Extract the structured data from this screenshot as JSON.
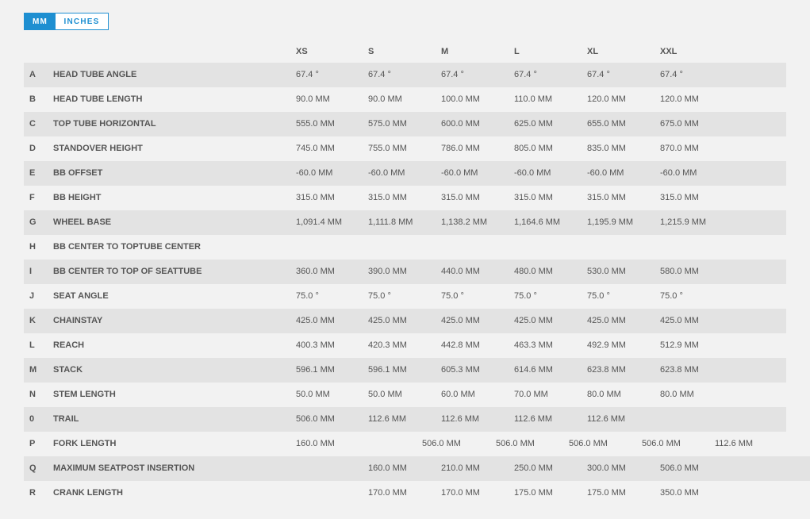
{
  "unit_toggle": {
    "mm_label": "MM",
    "inches_label": "INCHES",
    "active": "MM"
  },
  "sizes": [
    "XS",
    "S",
    "M",
    "L",
    "XL",
    "XXL"
  ],
  "rows": [
    {
      "letter": "A",
      "label": "HEAD TUBE ANGLE",
      "values": [
        "67.4 °",
        "67.4 °",
        "67.4 °",
        "67.4 °",
        "67.4 °",
        "67.4 °"
      ]
    },
    {
      "letter": "B",
      "label": "HEAD TUBE LENGTH",
      "values": [
        "90.0 MM",
        "90.0 MM",
        "100.0 MM",
        "110.0 MM",
        "120.0 MM",
        "120.0 MM"
      ]
    },
    {
      "letter": "C",
      "label": "TOP TUBE HORIZONTAL",
      "values": [
        "555.0 MM",
        "575.0 MM",
        "600.0 MM",
        "625.0 MM",
        "655.0 MM",
        "675.0 MM"
      ]
    },
    {
      "letter": "D",
      "label": "STANDOVER HEIGHT",
      "values": [
        "745.0 MM",
        "755.0 MM",
        "786.0 MM",
        "805.0 MM",
        "835.0 MM",
        "870.0 MM"
      ]
    },
    {
      "letter": "E",
      "label": "BB OFFSET",
      "values": [
        "-60.0 MM",
        "-60.0 MM",
        "-60.0 MM",
        "-60.0 MM",
        "-60.0 MM",
        "-60.0 MM"
      ]
    },
    {
      "letter": "F",
      "label": "BB HEIGHT",
      "values": [
        "315.0 MM",
        "315.0 MM",
        "315.0 MM",
        "315.0 MM",
        "315.0 MM",
        "315.0 MM"
      ]
    },
    {
      "letter": "G",
      "label": "WHEEL BASE",
      "values": [
        "1,091.4 MM",
        "1,111.8 MM",
        "1,138.2 MM",
        "1,164.6 MM",
        "1,195.9 MM",
        "1,215.9 MM"
      ]
    },
    {
      "letter": "H",
      "label": "BB CENTER TO TOPTUBE CENTER",
      "values": [
        "",
        "",
        "",
        "",
        "",
        ""
      ]
    },
    {
      "letter": "I",
      "label": "BB CENTER TO TOP OF SEATTUBE",
      "values": [
        "360.0 MM",
        "390.0 MM",
        "440.0 MM",
        "480.0 MM",
        "530.0 MM",
        "580.0 MM"
      ]
    },
    {
      "letter": "J",
      "label": "SEAT ANGLE",
      "values": [
        "75.0 °",
        "75.0 °",
        "75.0 °",
        "75.0 °",
        "75.0 °",
        "75.0 °"
      ]
    },
    {
      "letter": "K",
      "label": "CHAINSTAY",
      "values": [
        "425.0 MM",
        "425.0 MM",
        "425.0 MM",
        "425.0 MM",
        "425.0 MM",
        "425.0 MM"
      ]
    },
    {
      "letter": "L",
      "label": "REACH",
      "values": [
        "400.3 MM",
        "420.3 MM",
        "442.8 MM",
        "463.3 MM",
        "492.9 MM",
        "512.9 MM"
      ]
    },
    {
      "letter": "M",
      "label": "STACK",
      "values": [
        "596.1 MM",
        "596.1 MM",
        "605.3 MM",
        "614.6 MM",
        "623.8 MM",
        "623.8 MM"
      ]
    },
    {
      "letter": "N",
      "label": "STEM LENGTH",
      "values": [
        "50.0 MM",
        "50.0 MM",
        "60.0 MM",
        "70.0 MM",
        "80.0 MM",
        "80.0 MM"
      ]
    },
    {
      "letter": "0",
      "label": "TRAIL",
      "values": [
        "506.0 MM",
        "112.6 MM",
        "112.6 MM",
        "112.6 MM",
        "112.6 MM",
        ""
      ]
    },
    {
      "letter": "P",
      "label": "FORK LENGTH",
      "values": [
        "160.0 MM",
        "506.0 MM",
        "506.0 MM",
        "506.0 MM",
        "506.0 MM",
        "112.6 MM"
      ]
    },
    {
      "letter": "Q",
      "label": "MAXIMUM SEATPOST INSERTION",
      "values": [
        "",
        "160.0 MM",
        "210.0 MM",
        "250.0 MM",
        "300.0 MM",
        "506.0 MM"
      ]
    },
    {
      "letter": "R",
      "label": "CRANK LENGTH",
      "values": [
        "",
        "170.0 MM",
        "170.0 MM",
        "175.0 MM",
        "175.0 MM",
        "350.0 MM"
      ]
    }
  ]
}
